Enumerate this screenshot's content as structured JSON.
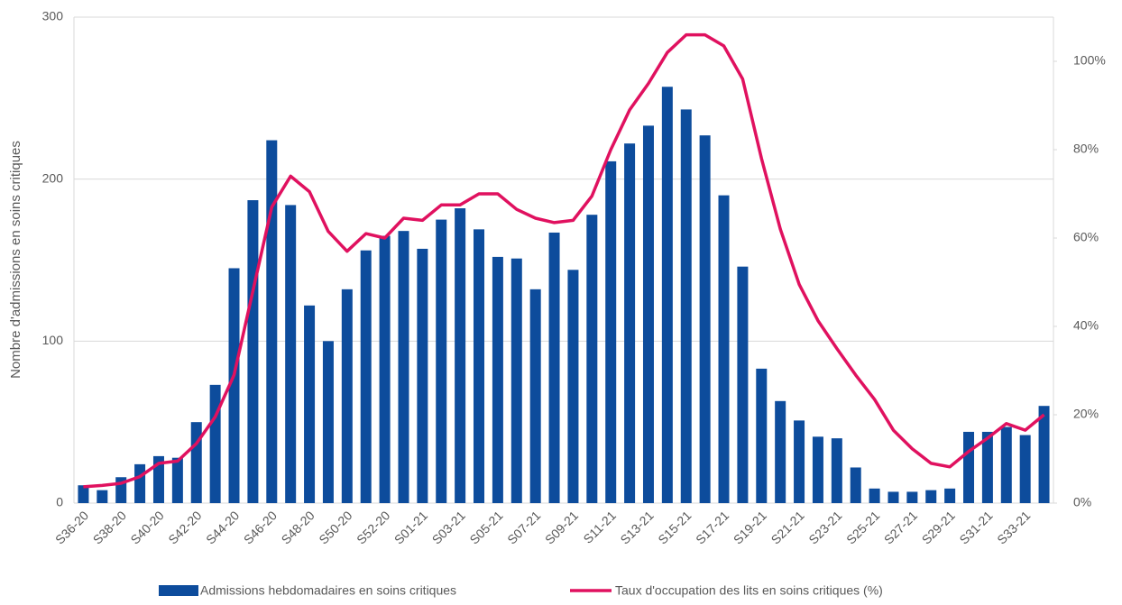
{
  "chart_data": {
    "type": "bar-line",
    "y_label": "Nombre d'admissions en soins critiques",
    "categories": [
      "S36-20",
      null,
      "S38-20",
      null,
      "S40-20",
      null,
      "S42-20",
      null,
      "S44-20",
      null,
      "S46-20",
      null,
      "S48-20",
      null,
      "S50-20",
      null,
      "S52-20",
      null,
      "S01-21",
      null,
      "S03-21",
      null,
      "S05-21",
      null,
      "S07-21",
      null,
      "S09-21",
      null,
      "S11-21",
      null,
      "S13-21",
      null,
      "S15-21",
      null,
      "S17-21",
      null,
      "S19-21",
      null,
      "S21-21",
      null,
      "S23-21",
      null,
      "S25-21",
      null,
      "S27-21",
      null,
      "S29-21",
      null,
      "S31-21",
      null,
      "S33-21",
      null
    ],
    "series": [
      {
        "name": "Admissions hebdomadaires en soins critiques",
        "type": "bar",
        "color": "#0d4c9c",
        "values": [
          11,
          8,
          16,
          24,
          29,
          28,
          50,
          73,
          145,
          187,
          224,
          184,
          122,
          100,
          132,
          156,
          165,
          168,
          157,
          175,
          182,
          169,
          152,
          151,
          132,
          167,
          144,
          178,
          211,
          222,
          233,
          257,
          243,
          227,
          190,
          146,
          83,
          63,
          51,
          41,
          40,
          22,
          9,
          7,
          7,
          8,
          9,
          44,
          44,
          47,
          42,
          60
        ]
      },
      {
        "name": "Taux d'occupation des lits en soins critiques (%)",
        "type": "line",
        "axis": "y2",
        "color": "#e0115f",
        "values": [
          3.7,
          4,
          4.5,
          6,
          9,
          9.5,
          13.5,
          19.5,
          29,
          48,
          67,
          74,
          70.5,
          61.5,
          57,
          61,
          60,
          64.5,
          64,
          67.5,
          67.5,
          70,
          70,
          66.5,
          64.5,
          63.5,
          64,
          69.5,
          80,
          89,
          95,
          102,
          106,
          106,
          103.5,
          96,
          78,
          62,
          49.5,
          41.3,
          35,
          29,
          23.5,
          16.5,
          12.3,
          9,
          8.2,
          11.7,
          14.7,
          18,
          16.5,
          20
        ]
      }
    ],
    "ylim": [
      0,
      300
    ],
    "yticks": [
      0,
      100,
      200,
      300
    ],
    "y2lim": [
      0,
      110
    ],
    "y2ticks": [
      {
        "value": 0,
        "label": "0%"
      },
      {
        "value": 20,
        "label": "20%"
      },
      {
        "value": 40,
        "label": "40%"
      },
      {
        "value": 60,
        "label": "60%"
      },
      {
        "value": 80,
        "label": "80%"
      },
      {
        "value": 100,
        "label": "100%"
      }
    ],
    "grid": true
  }
}
